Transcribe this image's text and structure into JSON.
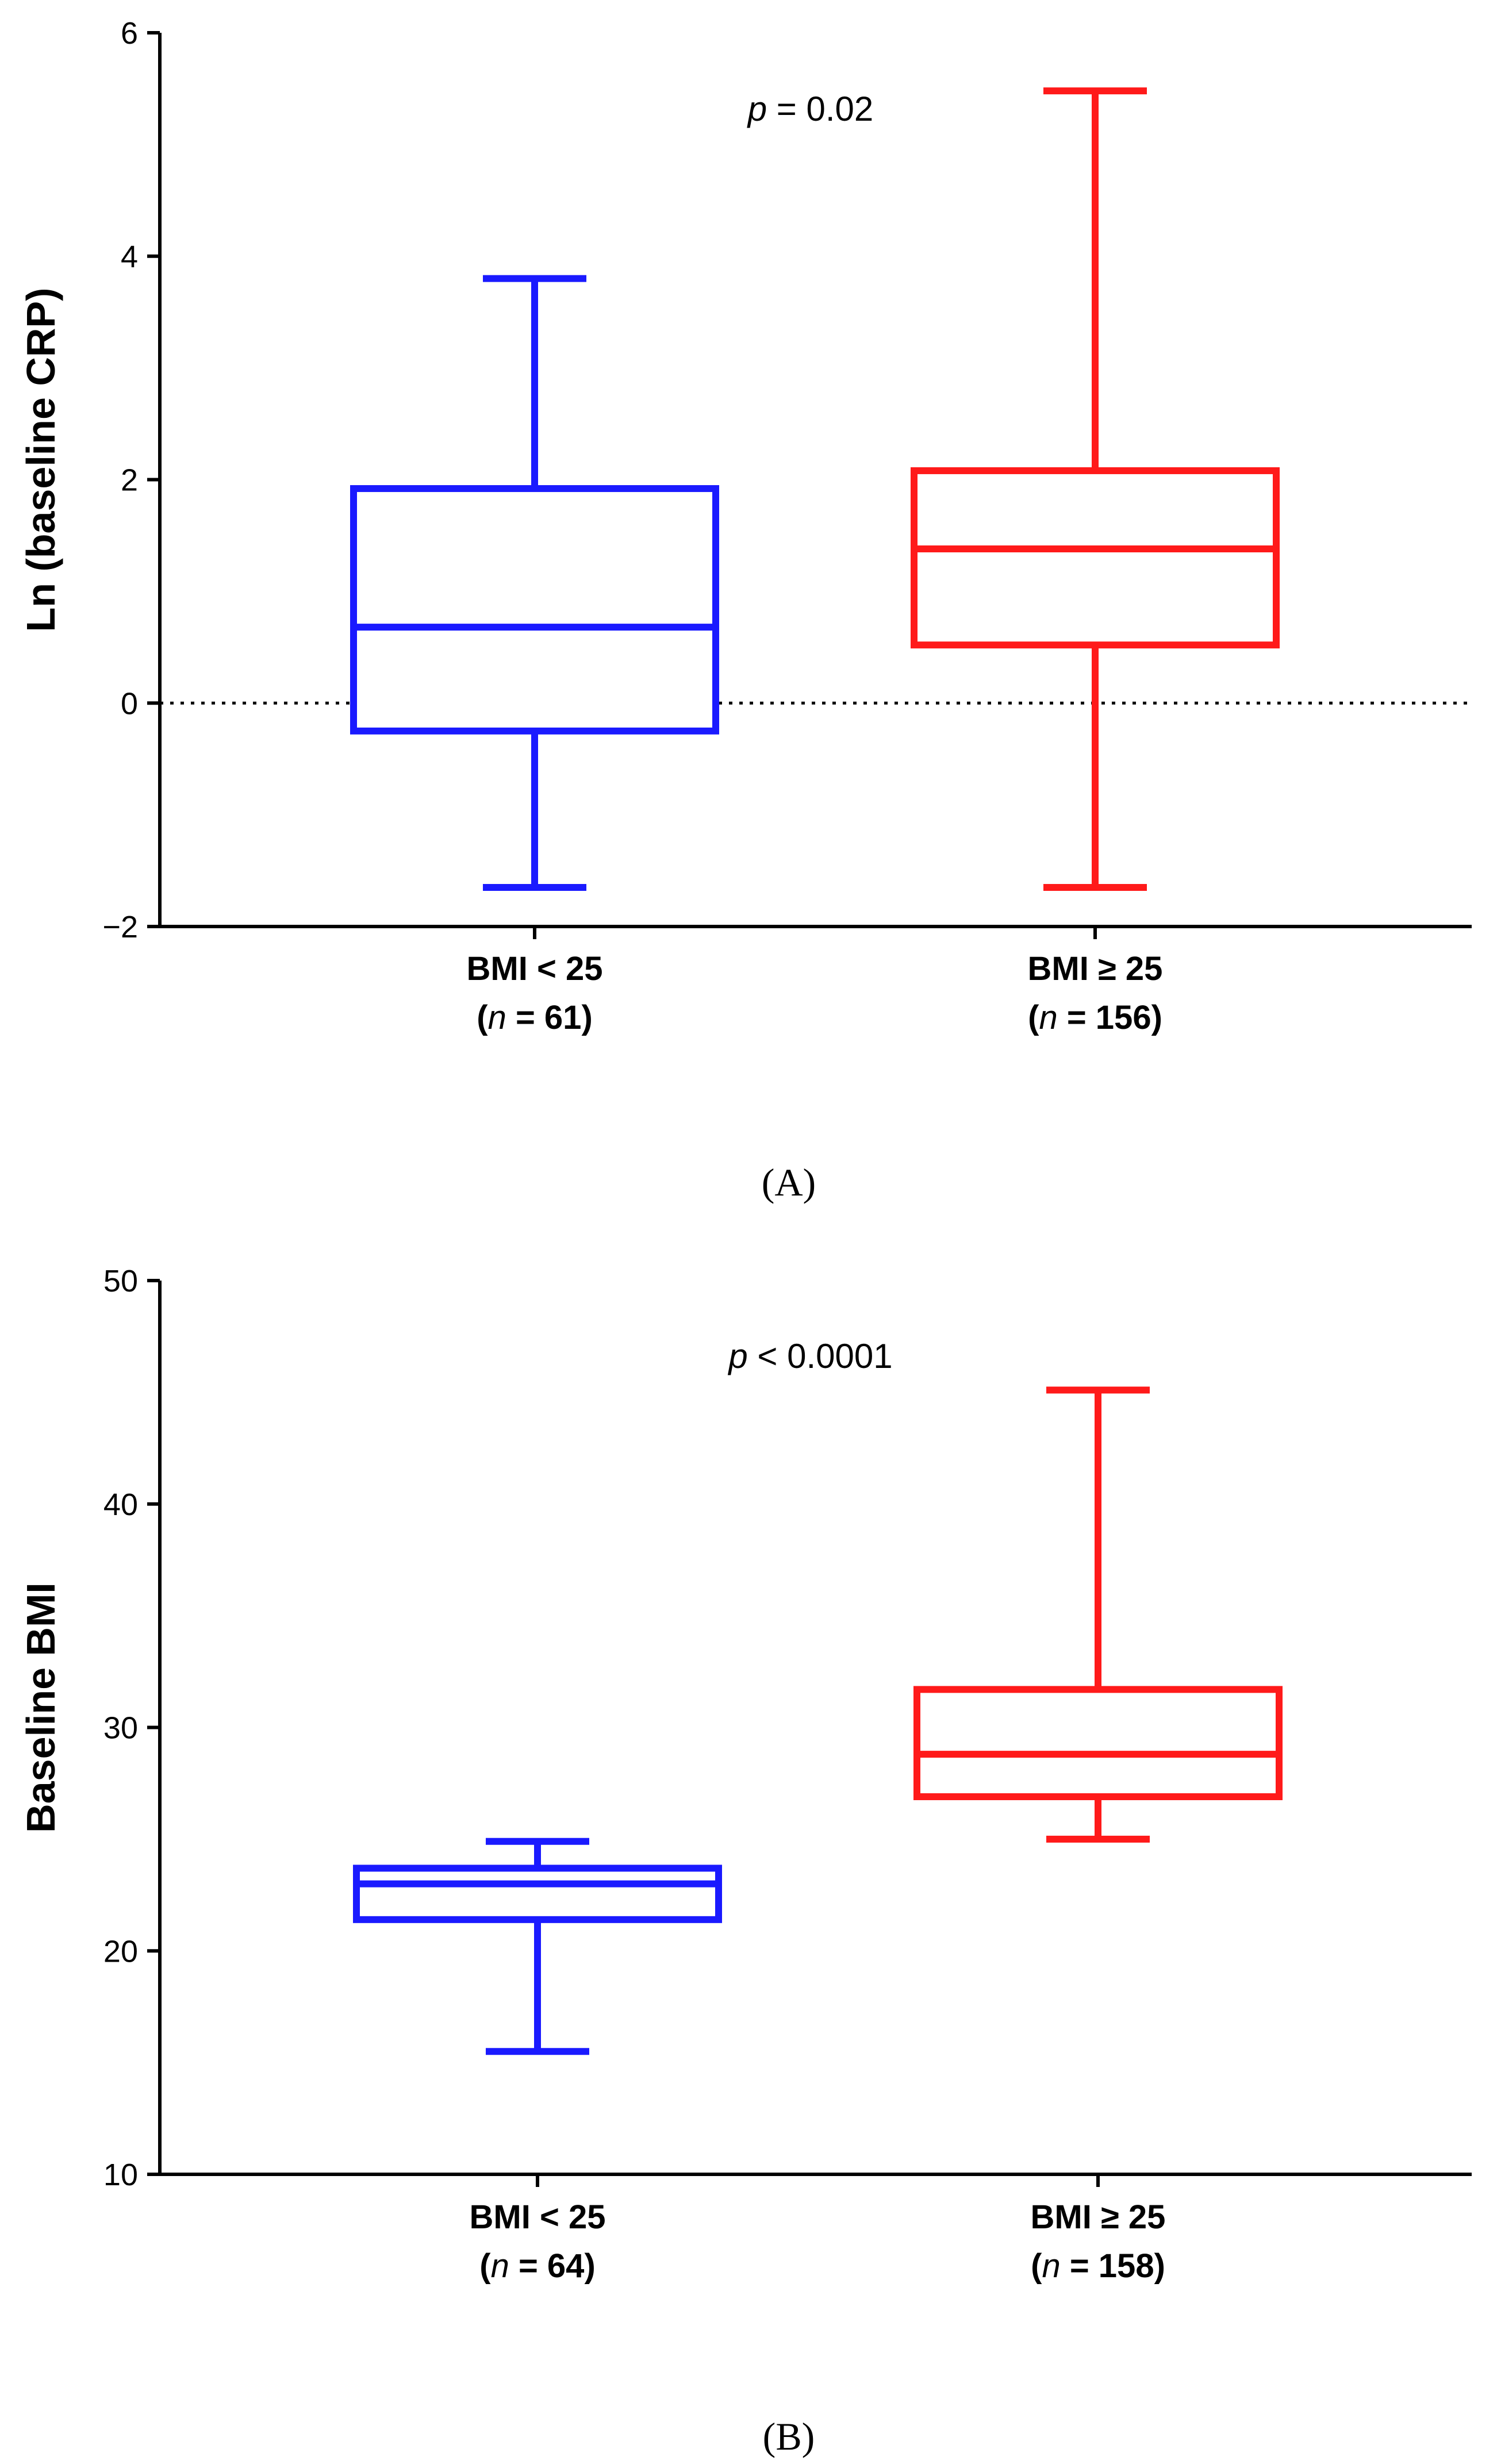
{
  "chart_data": [
    {
      "type": "box",
      "panel_label": "(A)",
      "ylabel": "Ln (baseline CRP)",
      "xlabel": "",
      "ylim": [
        -2,
        6
      ],
      "yticks": [
        -2,
        0,
        2,
        4,
        6
      ],
      "ytick_labels": [
        "−2",
        "0",
        "2",
        "4",
        "6"
      ],
      "reference_line": {
        "y": 0,
        "style": "dotted"
      },
      "annotation": {
        "italic": "p",
        "rest": " = 0.02"
      },
      "series": [
        {
          "name": "BMI < 25",
          "label_line1": "BMI < 25",
          "label_n_prefix": "(",
          "label_n_italic": "n",
          "label_n_rest": " = 61)",
          "color": "#1a1aff",
          "min": -1.65,
          "q1": -0.25,
          "median": 0.68,
          "q3": 1.92,
          "max": 3.8
        },
        {
          "name": "BMI ≥ 25",
          "label_line1": "BMI ≥ 25",
          "label_n_prefix": "(",
          "label_n_italic": "n",
          "label_n_rest": " = 156)",
          "color": "#ff1a1a",
          "min": -1.65,
          "q1": 0.52,
          "median": 1.38,
          "q3": 2.08,
          "max": 5.48
        }
      ]
    },
    {
      "type": "box",
      "panel_label": "(B)",
      "ylabel": "Baseline BMI",
      "xlabel": "",
      "ylim": [
        10,
        50
      ],
      "yticks": [
        10,
        20,
        30,
        40,
        50
      ],
      "ytick_labels": [
        "10",
        "20",
        "30",
        "40",
        "50"
      ],
      "annotation": {
        "italic": "p",
        "rest": " < 0.0001"
      },
      "series": [
        {
          "name": "BMI < 25",
          "label_line1": "BMI < 25",
          "label_n_prefix": "(",
          "label_n_italic": "n",
          "label_n_rest": " = 64)",
          "color": "#1a1aff",
          "min": 15.5,
          "q1": 21.4,
          "median": 23.0,
          "q3": 23.7,
          "max": 24.9
        },
        {
          "name": "BMI ≥ 25",
          "label_line1": "BMI ≥ 25",
          "label_n_prefix": "(",
          "label_n_italic": "n",
          "label_n_rest": " = 158)",
          "color": "#ff1a1a",
          "min": 25.0,
          "q1": 26.9,
          "median": 28.8,
          "q3": 31.7,
          "max": 45.1
        }
      ]
    }
  ]
}
